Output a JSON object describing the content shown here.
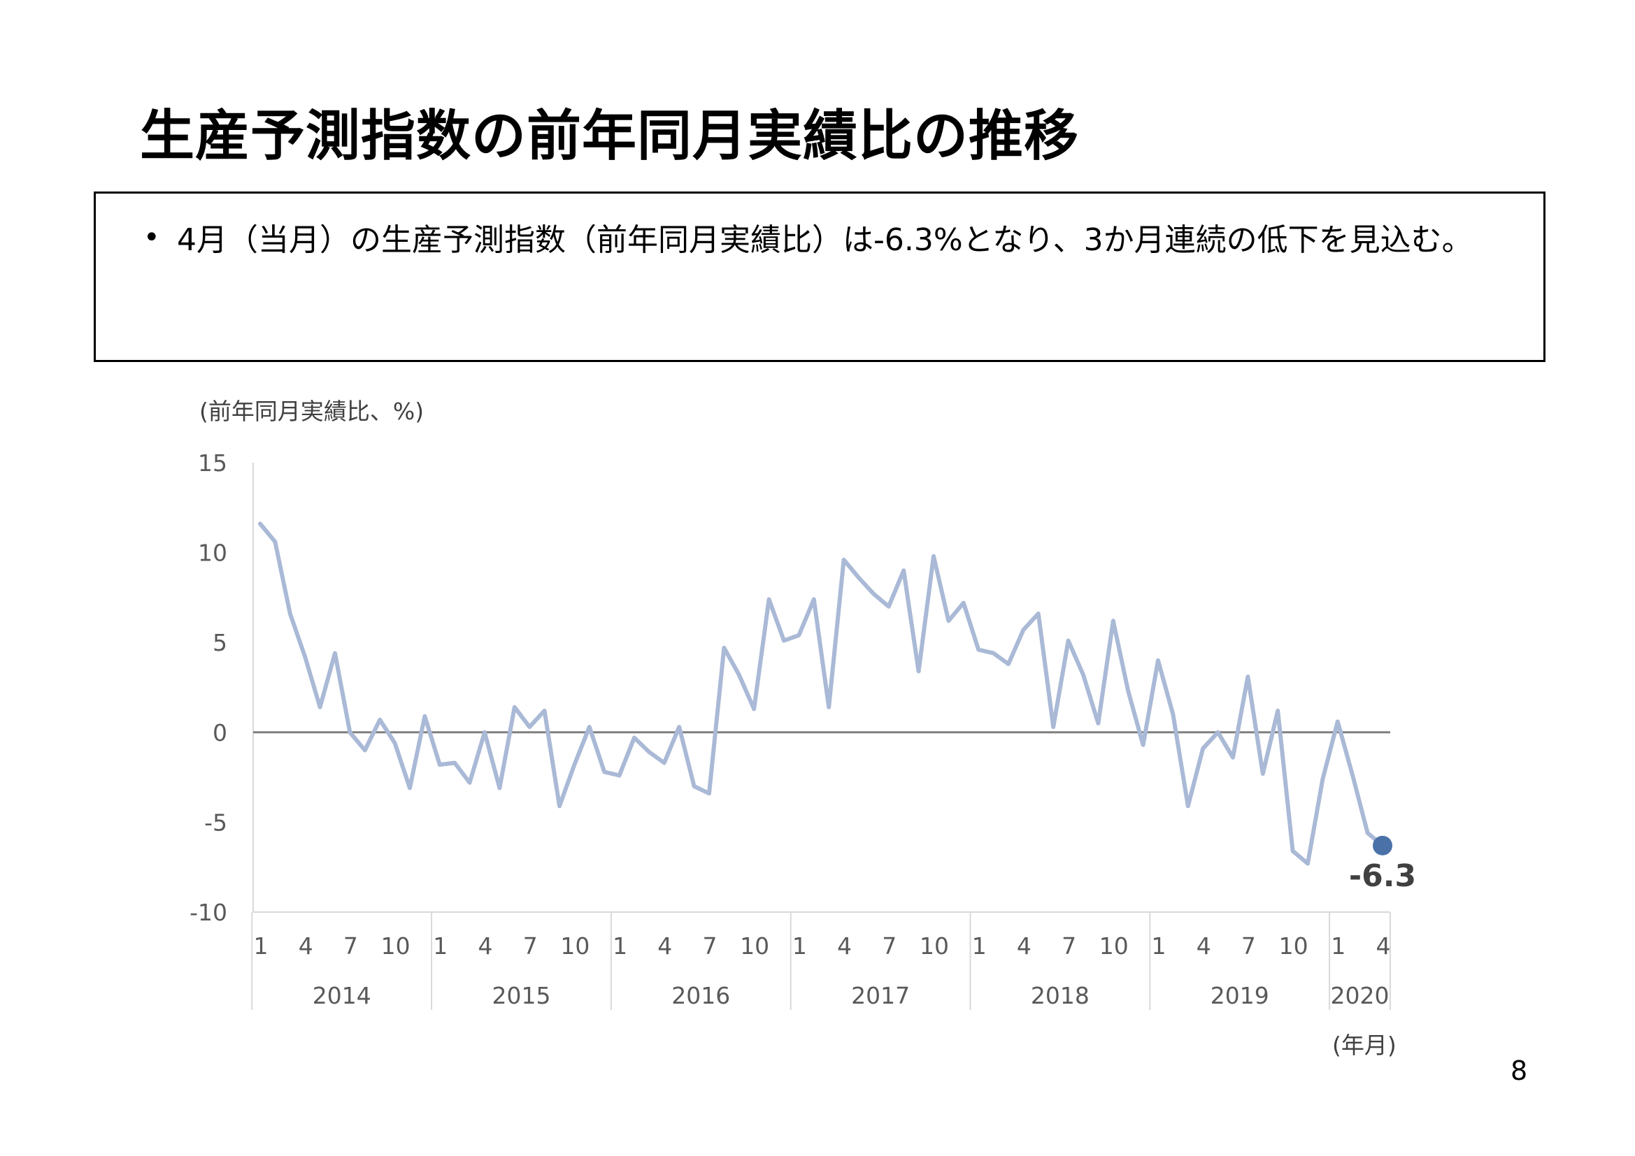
{
  "slide": {
    "title": "生産予測指数の前年同月実績比の推移",
    "bullet": "4月（当月）の生産予測指数（前年同月実績比）は-6.3%となり、3か月連続の低下を見込む。",
    "page_number": "8"
  },
  "colors": {
    "line": "#a9b9d6",
    "marker": "#4a72a8",
    "zero_line": "#7f7f7f",
    "axis": "#d9d9d9",
    "text": "#595959",
    "label": "#404040"
  },
  "chart_data": {
    "type": "line",
    "ylabel": "(前年同月実績比、%)",
    "xlabel": "(年月)",
    "ylim": [
      -10,
      15
    ],
    "yticks": [
      "15",
      "10",
      "5",
      "0",
      "-5",
      "-10"
    ],
    "month_ticks": [
      "1",
      "4",
      "7",
      "10"
    ],
    "years": [
      "2014",
      "2015",
      "2016",
      "2017",
      "2018",
      "2019",
      "2020"
    ],
    "last_year_month_ticks": [
      "1",
      "4"
    ],
    "start": "2014-01",
    "end": "2020-04",
    "series": [
      {
        "values": [
          11.6,
          10.6,
          6.6,
          4.2,
          1.4,
          4.4,
          0.0,
          -1.0,
          0.7,
          -0.6,
          -3.1,
          0.9,
          -1.8,
          -1.7,
          -2.8,
          0.0,
          -3.1,
          1.4,
          0.3,
          1.2,
          -4.1,
          -1.8,
          0.3,
          -2.2,
          -2.4,
          -0.3,
          -1.1,
          -1.7,
          0.3,
          -3.0,
          -3.4,
          4.7,
          3.2,
          1.3,
          7.4,
          5.1,
          5.4,
          7.4,
          1.4,
          9.6,
          8.6,
          7.7,
          7.0,
          9.0,
          3.4,
          9.8,
          6.2,
          7.2,
          4.6,
          4.4,
          3.8,
          5.7,
          6.6,
          0.3,
          5.1,
          3.2,
          0.5,
          6.2,
          2.3,
          -0.7,
          4.0,
          1.0,
          -4.1,
          -0.9,
          0.0,
          -1.4,
          3.1,
          -2.3,
          1.2,
          -6.6,
          -7.3,
          -2.6,
          0.6,
          -2.4,
          -5.6,
          -6.3
        ]
      }
    ],
    "annotation": "-6.3"
  }
}
